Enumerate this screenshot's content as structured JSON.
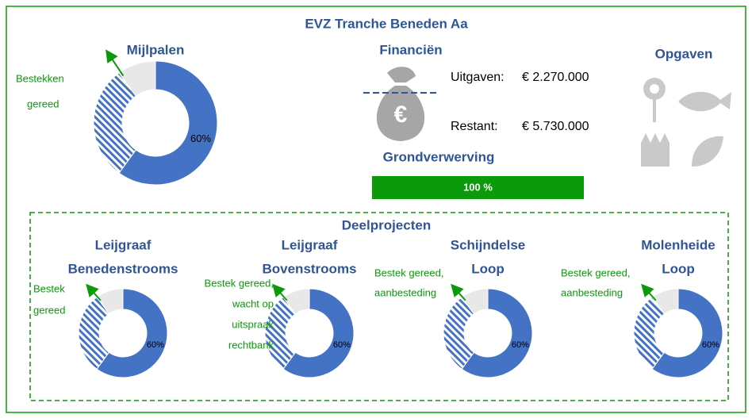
{
  "title": "EVZ Tranche Beneden Aa",
  "milestones": {
    "title": "Mijlpalen",
    "annotation": [
      "Bestekken",
      "gereed"
    ],
    "chart": {
      "type": "pie",
      "values": [
        60,
        30,
        10
      ],
      "value_labels": [
        "60%",
        null,
        null
      ],
      "colors": [
        "#4472c4",
        "#4472c4",
        "#e8e8e8"
      ],
      "hatched": [
        false,
        true,
        false
      ]
    }
  },
  "finance": {
    "title": "Financiën",
    "spent_label": "Uitgaven:",
    "spent": "€ 2.270.000",
    "remaining_label": "Restant:",
    "remaining": "€ 5.730.000"
  },
  "land": {
    "title": "Grondverwerving",
    "value": 100,
    "value_label": "100 %",
    "xlim": [
      0,
      100
    ],
    "color": "#0a9a0a"
  },
  "tasks": {
    "title": "Opgaven"
  },
  "subprojects": {
    "title": "Deelprojecten",
    "items": [
      {
        "title": [
          "Leijgraaf",
          "Benedenstrooms"
        ],
        "annotation": [
          "Bestek",
          "gereed"
        ],
        "chart": {
          "type": "pie",
          "values": [
            60,
            30,
            10
          ],
          "value_labels": [
            "60%",
            null,
            null
          ],
          "colors": [
            "#4472c4",
            "#4472c4",
            "#e8e8e8"
          ],
          "hatched": [
            false,
            true,
            false
          ]
        }
      },
      {
        "title": [
          "Leijgraaf",
          "Bovenstrooms"
        ],
        "annotation": [
          "Bestek gereed,",
          "wacht op",
          "uitspraak",
          "rechtbank"
        ],
        "chart": {
          "type": "pie",
          "values": [
            60,
            30,
            10
          ],
          "value_labels": [
            "60%",
            null,
            null
          ],
          "colors": [
            "#4472c4",
            "#4472c4",
            "#e8e8e8"
          ],
          "hatched": [
            false,
            true,
            false
          ]
        }
      },
      {
        "title": [
          "Schijndelse",
          "Loop"
        ],
        "annotation": [
          "Bestek gereed,",
          "aanbesteding"
        ],
        "chart": {
          "type": "pie",
          "values": [
            60,
            30,
            10
          ],
          "value_labels": [
            "60%",
            null,
            null
          ],
          "colors": [
            "#4472c4",
            "#4472c4",
            "#e8e8e8"
          ],
          "hatched": [
            false,
            true,
            false
          ]
        }
      },
      {
        "title": [
          "Molenheide",
          "Loop"
        ],
        "annotation": [
          "Bestek gereed,",
          "aanbesteding"
        ],
        "chart": {
          "type": "pie",
          "values": [
            60,
            30,
            10
          ],
          "value_labels": [
            "60%",
            null,
            null
          ],
          "colors": [
            "#4472c4",
            "#4472c4",
            "#e8e8e8"
          ],
          "hatched": [
            false,
            true,
            false
          ]
        }
      }
    ]
  }
}
